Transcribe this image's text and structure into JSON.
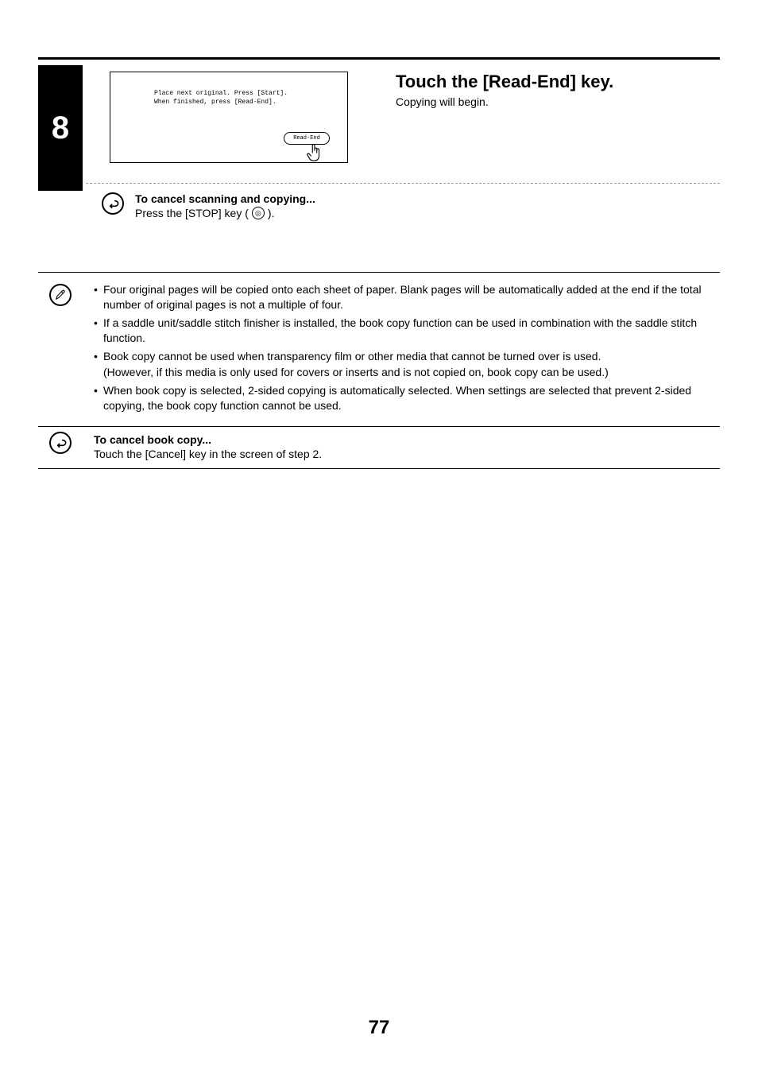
{
  "step": {
    "number": "8",
    "screenshot": {
      "line1": "Place next original. Press [Start].",
      "line2": "When finished, press [Read-End].",
      "button_label": "Read-End"
    },
    "title": "Touch the [Read-End] key.",
    "subtitle": "Copying will begin.",
    "cancel_scan": {
      "heading": "To cancel scanning and copying...",
      "body_prefix": "Press the [STOP] key (",
      "stop_glyph": "◎",
      "body_suffix": ")."
    }
  },
  "info": {
    "bullets": [
      "Four original pages will be copied onto each sheet of paper. Blank pages will be automatically added at the end if the total number of original pages is not a multiple of four.",
      "If a saddle unit/saddle stitch finisher is installed, the book copy function can be used in combination with the saddle stitch function.",
      "Book copy cannot be used when transparency film or other media that cannot be turned over is used.",
      "When book copy is selected, 2-sided copying is automatically selected. When settings are selected that prevent 2-sided copying, the book copy function cannot be used."
    ],
    "paren_after_bullet_index": 2,
    "paren_text": "(However, if this media is only used for covers or inserts and is not copied on, book copy can be used.)"
  },
  "cancel_book": {
    "heading": "To cancel book copy...",
    "body": "Touch the [Cancel] key in the screen of step 2."
  },
  "page_number": "77",
  "colors": {
    "text": "#000000",
    "background": "#ffffff",
    "dash": "#9a9a9a"
  },
  "typography": {
    "title_fontsize_pt": 17,
    "body_fontsize_pt": 10.5,
    "mono_fontsize_pt": 6,
    "pagenum_fontsize_pt": 18,
    "stepnum_fontsize_pt": 30
  }
}
